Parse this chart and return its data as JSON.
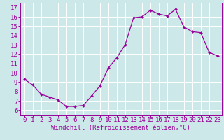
{
  "x": [
    0,
    1,
    2,
    3,
    4,
    5,
    6,
    7,
    8,
    9,
    10,
    11,
    12,
    13,
    14,
    15,
    16,
    17,
    18,
    19,
    20,
    21,
    22,
    23
  ],
  "y": [
    9.3,
    8.7,
    7.7,
    7.4,
    7.1,
    6.4,
    6.4,
    6.5,
    7.5,
    8.6,
    10.5,
    11.6,
    13.0,
    15.9,
    16.0,
    16.7,
    16.3,
    16.1,
    16.8,
    14.9,
    14.4,
    14.3,
    12.2,
    11.8
  ],
  "line_color": "#990099",
  "marker": "D",
  "marker_size": 2.0,
  "bg_color": "#cce8e8",
  "grid_color": "#ffffff",
  "xlabel": "Windchill (Refroidissement éolien,°C)",
  "ylim": [
    5.5,
    17.5
  ],
  "xlim": [
    -0.5,
    23.5
  ],
  "yticks": [
    6,
    7,
    8,
    9,
    10,
    11,
    12,
    13,
    14,
    15,
    16,
    17
  ],
  "xticks": [
    0,
    1,
    2,
    3,
    4,
    5,
    6,
    7,
    8,
    9,
    10,
    11,
    12,
    13,
    14,
    15,
    16,
    17,
    18,
    19,
    20,
    21,
    22,
    23
  ],
  "tick_label_color": "#990099",
  "xlabel_color": "#990099",
  "xlabel_fontsize": 6.5,
  "tick_fontsize": 6.5,
  "spine_color": "#990099",
  "line_width": 0.9
}
